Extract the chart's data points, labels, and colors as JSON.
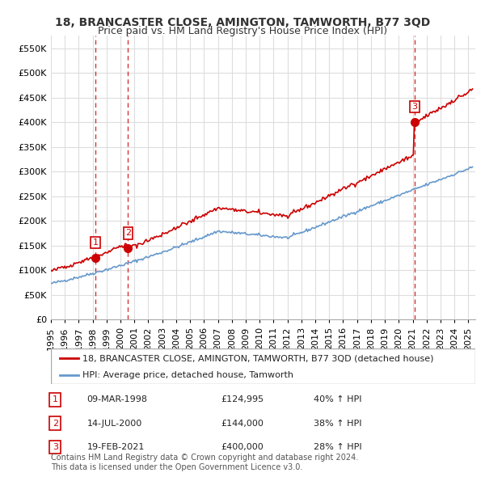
{
  "title": "18, BRANCASTER CLOSE, AMINGTON, TAMWORTH, B77 3QD",
  "subtitle": "Price paid vs. HM Land Registry's House Price Index (HPI)",
  "ylabel": "",
  "ylim": [
    0,
    575000
  ],
  "yticks": [
    0,
    50000,
    100000,
    150000,
    200000,
    250000,
    300000,
    350000,
    400000,
    450000,
    500000,
    550000
  ],
  "xlim_start": 1995.0,
  "xlim_end": 2025.5,
  "sale_dates": [
    1998.19,
    2000.54,
    2021.13
  ],
  "sale_prices": [
    124995,
    144000,
    400000
  ],
  "sale_labels": [
    "1",
    "2",
    "3"
  ],
  "red_line_color": "#cc0000",
  "blue_line_color": "#6699cc",
  "marker_color": "#cc0000",
  "sale_vline_color": "#cc0000",
  "background_color": "#ffffff",
  "grid_color": "#dddddd",
  "legend_label_red": "18, BRANCASTER CLOSE, AMINGTON, TAMWORTH, B77 3QD (detached house)",
  "legend_label_blue": "HPI: Average price, detached house, Tamworth",
  "table_data": [
    [
      "1",
      "09-MAR-1998",
      "£124,995",
      "40% ↑ HPI"
    ],
    [
      "2",
      "14-JUL-2000",
      "£144,000",
      "38% ↑ HPI"
    ],
    [
      "3",
      "19-FEB-2021",
      "£400,000",
      "28% ↑ HPI"
    ]
  ],
  "footer_text": "Contains HM Land Registry data © Crown copyright and database right 2024.\nThis data is licensed under the Open Government Licence v3.0.",
  "title_fontsize": 10,
  "subtitle_fontsize": 9,
  "tick_fontsize": 8,
  "legend_fontsize": 8,
  "table_fontsize": 8,
  "footer_fontsize": 7
}
